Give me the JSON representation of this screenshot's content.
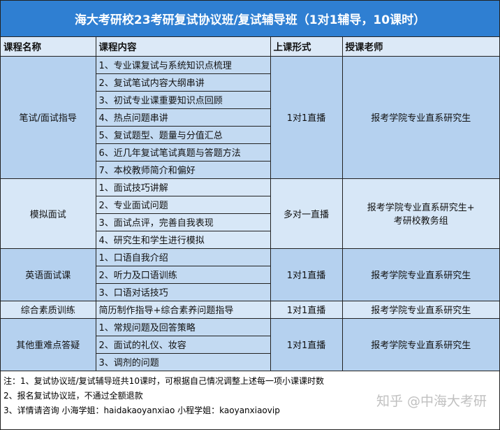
{
  "title": "海大考研校23考研复试协议班/复试辅导班（1对1辅导，10课时）",
  "headers": [
    "课程名称",
    "课程内容",
    "上课形式",
    "授课老师"
  ],
  "groups": [
    {
      "name": "笔试/面试指导",
      "items": [
        "1、专业课复试与系统知识点梳理",
        "2、复试笔试内容大纲串讲",
        "3、初试专业课重要知识点回顾",
        "4、热点问题串讲",
        "5、复试题型、题量与分值汇总",
        "6、近几年复试笔试真题与答题方法",
        "7、本校教师简介和偏好"
      ],
      "format": "1对1直播",
      "teacher": "报考学院专业直系研究生"
    },
    {
      "name": "模拟面试",
      "items": [
        "1、面试技巧讲解",
        "2、专业面试问题",
        "3、面试点评，完善自我表现",
        "4、研究生和学生进行模拟"
      ],
      "format": "多对一直播",
      "teacher": "报考学院专业直系研究生+",
      "teacher2": "考研校教务组"
    },
    {
      "name": "英语面试课",
      "items": [
        "1、口语自我介绍",
        "2、听力及口语训练",
        "3、口语对话技巧"
      ],
      "format": "1对1直播",
      "teacher": "报考学院专业直系研究生"
    },
    {
      "name": "综合素质训练",
      "items": [
        "简历制作指导+综合素养问题指导"
      ],
      "format": "1对1直播",
      "teacher": "报考学院专业直系研究生"
    },
    {
      "name": "其他重难点答疑",
      "items": [
        "1、常规问题及回答策略",
        "2、面试的礼仪、妆容",
        "3、调剂的问题"
      ],
      "format": "1对1直播",
      "teacher": "报考学院专业直系研究生"
    }
  ],
  "notes": [
    "注：1、复试协议班/复试辅导班共10课时，可根据自己情况调整上述每一项小课课时数",
    "2、报名复试协议班，不通过全额退款",
    "3、详情请咨询 小海学姐：haidakaoyanxiao  小程学姐：kaoyanxiaovip"
  ],
  "watermark": "知乎 @中海大考研",
  "colors": {
    "title_bg": "#2f7fd2",
    "header_bg": "#dce9f7",
    "dark_bg": "#b5d1ef",
    "light_bg": "#d7e7f7"
  }
}
